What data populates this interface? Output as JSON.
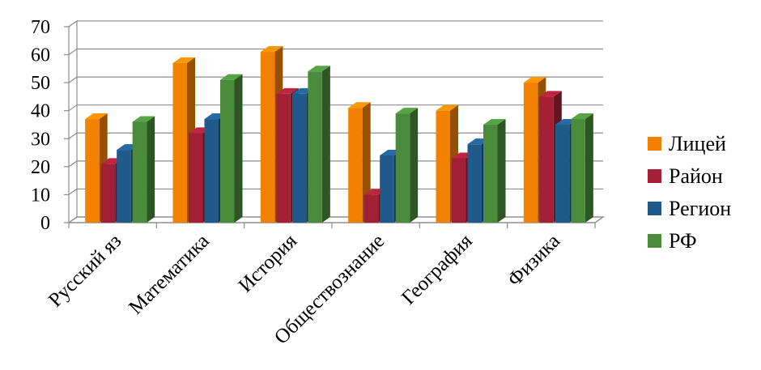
{
  "chart_data": {
    "type": "bar",
    "categories": [
      "Русский яз",
      "Математика",
      "История",
      "Обществознание",
      "География",
      "Физика"
    ],
    "series": [
      {
        "name": "Лицей",
        "color": "#F28100",
        "values": [
          37,
          57,
          61,
          41,
          40,
          50
        ]
      },
      {
        "name": "Район",
        "color": "#A31F35",
        "values": [
          21,
          32,
          46,
          10,
          23,
          45
        ]
      },
      {
        "name": "Регион",
        "color": "#1F5A8A",
        "values": [
          26,
          37,
          46,
          24,
          28,
          35
        ]
      },
      {
        "name": "РФ",
        "color": "#4A8B3C",
        "values": [
          36,
          51,
          54,
          39,
          35,
          37
        ]
      }
    ],
    "y_ticks": [
      "0",
      "10",
      "20",
      "30",
      "40",
      "50",
      "60",
      "70"
    ],
    "ylim": [
      0,
      70
    ],
    "grid": true,
    "legend_position": "right"
  }
}
